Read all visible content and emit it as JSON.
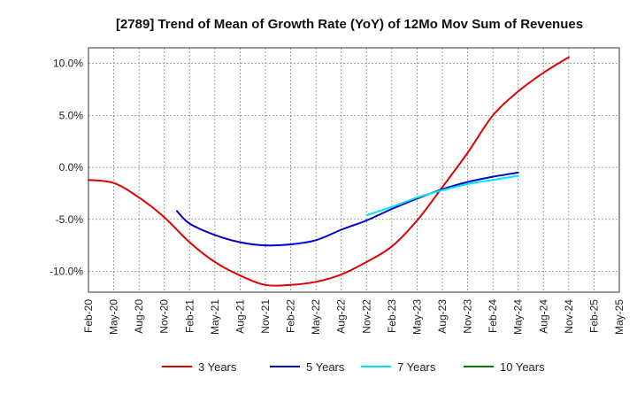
{
  "chart_data": {
    "type": "line",
    "title": "[2789]  Trend of Mean of Growth Rate (YoY) of 12Mo Mov Sum of Revenues",
    "xlabel": "",
    "ylabel": "",
    "x": [
      "Feb-20",
      "May-20",
      "Aug-20",
      "Nov-20",
      "Feb-21",
      "May-21",
      "Aug-21",
      "Nov-21",
      "Feb-22",
      "May-22",
      "Aug-22",
      "Nov-22",
      "Feb-23",
      "May-23",
      "Aug-23",
      "Nov-23",
      "Feb-24",
      "May-24",
      "Aug-24",
      "Nov-24",
      "Feb-25",
      "May-25"
    ],
    "ylim": [
      -12.0,
      11.5
    ],
    "yticks": [
      10.0,
      5.0,
      0.0,
      -5.0,
      -10.0
    ],
    "ytick_labels": [
      "10.0%",
      "5.0%",
      "0.0%",
      "-5.0%",
      "-10.0%"
    ],
    "grid": true,
    "legend_position": "bottom",
    "series": [
      {
        "name": "3 Years",
        "color": "#dd0000",
        "points": [
          [
            0,
            -1.2
          ],
          [
            1,
            -1.5
          ],
          [
            2,
            -2.9
          ],
          [
            3,
            -4.8
          ],
          [
            4,
            -7.2
          ],
          [
            5,
            -9.1
          ],
          [
            6,
            -10.4
          ],
          [
            7,
            -11.3
          ],
          [
            8,
            -11.3
          ],
          [
            9,
            -11.0
          ],
          [
            10,
            -10.3
          ],
          [
            11,
            -9.1
          ],
          [
            12,
            -7.6
          ],
          [
            13,
            -5.1
          ],
          [
            14,
            -1.9
          ],
          [
            15,
            1.4
          ],
          [
            16,
            5.0
          ],
          [
            17,
            7.3
          ],
          [
            18,
            9.1
          ],
          [
            19,
            10.6
          ]
        ]
      },
      {
        "name": "5 Years",
        "color": "#0000cc",
        "points": [
          [
            3.5,
            -4.2
          ],
          [
            4,
            -5.4
          ],
          [
            5,
            -6.5
          ],
          [
            6,
            -7.2
          ],
          [
            7,
            -7.5
          ],
          [
            8,
            -7.4
          ],
          [
            9,
            -7.0
          ],
          [
            10,
            -6.0
          ],
          [
            11,
            -5.1
          ],
          [
            12,
            -4.0
          ],
          [
            13,
            -3.0
          ],
          [
            14,
            -2.1
          ],
          [
            15,
            -1.4
          ],
          [
            16,
            -0.9
          ],
          [
            17,
            -0.5
          ]
        ]
      },
      {
        "name": "7 Years",
        "color": "#00e5ee",
        "points": [
          [
            11,
            -4.6
          ],
          [
            12,
            -3.8
          ],
          [
            13,
            -2.9
          ],
          [
            14,
            -2.2
          ],
          [
            15,
            -1.6
          ],
          [
            16,
            -1.2
          ],
          [
            17,
            -0.8
          ]
        ]
      },
      {
        "name": "10 Years",
        "color": "#008000",
        "points": []
      }
    ]
  }
}
